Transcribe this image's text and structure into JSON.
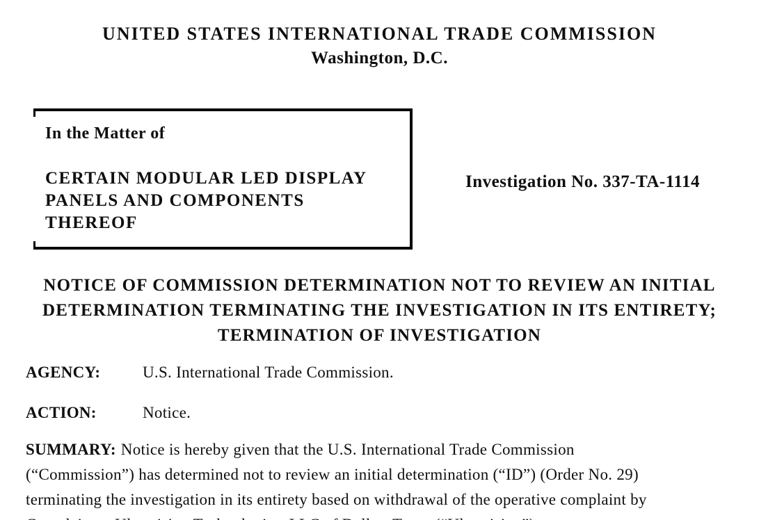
{
  "colors": {
    "background": "#ffffff",
    "text": "#0f0f0f",
    "box_border": "#000000"
  },
  "header": {
    "title": "UNITED STATES INTERNATIONAL TRADE COMMISSION",
    "subtitle": "Washington, D.C."
  },
  "case_caption": {
    "in_the_matter_of": "In the Matter of",
    "case_title_line1": "CERTAIN MODULAR LED DISPLAY",
    "case_title_line2": "PANELS AND COMPONENTS THEREOF"
  },
  "investigation_number": "Investigation No. 337-TA-1114",
  "notice_title": {
    "line1": "NOTICE OF COMMISSION DETERMINATION NOT TO REVIEW AN INITIAL",
    "line2": "DETERMINATION TERMINATING THE INVESTIGATION IN ITS ENTIRETY;",
    "line3": "TERMINATION OF INVESTIGATION"
  },
  "fields": {
    "agency": {
      "label": "AGENCY:",
      "value": "U.S. International Trade Commission."
    },
    "action": {
      "label": "ACTION:",
      "value": "Notice."
    }
  },
  "summary": {
    "label": "SUMMARY:",
    "line1": "Notice is hereby given that the U.S. International Trade Commission",
    "line2": "(“Commission”) has determined not to review an initial determination (“ID”) (Order No. 29)",
    "line3": "terminating the investigation in its entirety based on withdrawal of the operative complaint by",
    "line4": "Complainant Ultravision Technologies, LLC of Dallas, Texas (“Ultravision”)."
  }
}
